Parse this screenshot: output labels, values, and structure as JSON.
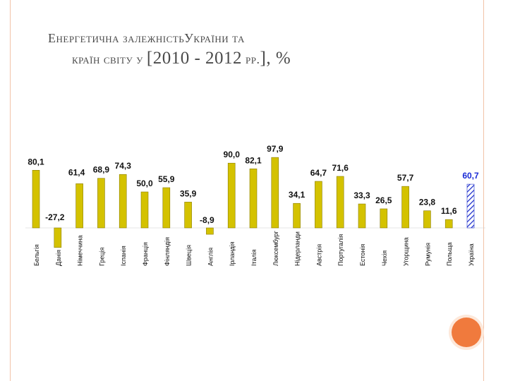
{
  "title": {
    "line1_a": "Енергетична залежність",
    "line1_b": "України та",
    "line2_a": "країн світу у ",
    "line2_b": "[2010 - 2012",
    "line2_c": " рр.",
    "line2_d": "], %"
  },
  "colors": {
    "bar": "#d4c200",
    "bar_edge": "#8a7d00",
    "ukraine_bar": "#2233cc",
    "ukraine_label": "#1a2bd6",
    "accent_circle": "#f07a3d"
  },
  "chart_data": {
    "type": "bar",
    "title": "",
    "xlabel": "",
    "ylabel": "",
    "ylim": [
      -30,
      100
    ],
    "grid": false,
    "categories": [
      "Бельгія",
      "Данія",
      "Німеччина",
      "Греція",
      "Іспанія",
      "Франція",
      "Фінляндія",
      "Швеція",
      "Англія",
      "Ірландія",
      "Італія",
      "Люксембург",
      "Нідерланди",
      "Австрія",
      "Португалія",
      "Естонія",
      "Чехія",
      "Угорщина",
      "Румунія",
      "Польща",
      "Україна"
    ],
    "values": [
      80.1,
      -27.2,
      61.4,
      68.9,
      74.3,
      50.0,
      55.9,
      35.9,
      -8.9,
      90.0,
      82.1,
      97.9,
      34.1,
      64.7,
      71.6,
      33.3,
      26.5,
      57.7,
      23.8,
      11.6,
      60.7
    ],
    "data_labels": [
      "80,1",
      "-27,2",
      "61,4",
      "68,9",
      "74,3",
      "50,0",
      "55,9",
      "35,9",
      "-8,9",
      "90,0",
      "82,1",
      "97,9",
      "34,1",
      "64,7",
      "71,6",
      "33,3",
      "26,5",
      "57,7",
      "23,8",
      "11,6",
      "60,7"
    ],
    "highlight": "Україна"
  }
}
